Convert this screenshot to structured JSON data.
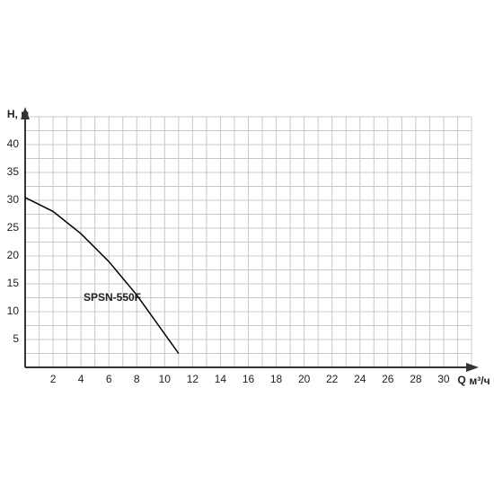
{
  "chart_data": {
    "type": "line",
    "y_label": "H, м",
    "x_label": "Q",
    "x_unit": "м³/ч",
    "x": [
      0,
      2,
      4,
      6,
      8,
      10,
      11
    ],
    "series": [
      {
        "name": "SPSN-550F",
        "color": "#000000",
        "values": [
          30.5,
          28,
          24,
          19,
          13,
          6,
          2.5
        ]
      }
    ],
    "xlim": [
      0,
      32
    ],
    "ylim": [
      0,
      45
    ],
    "xticks": [
      2,
      4,
      6,
      8,
      10,
      12,
      14,
      16,
      18,
      20,
      22,
      24,
      26,
      28,
      30
    ],
    "yticks": [
      5,
      10,
      15,
      20,
      25,
      30,
      35,
      40
    ],
    "grid": true
  }
}
